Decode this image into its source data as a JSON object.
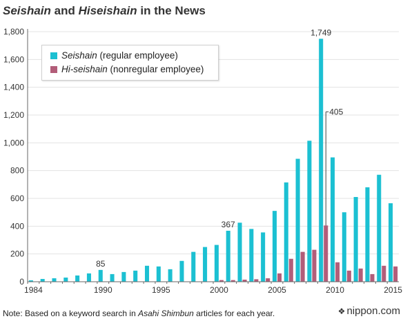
{
  "title": {
    "part1": "Seishain",
    "part2": " and ",
    "part3": "Hiseishain",
    "part4": " in the News"
  },
  "legend": {
    "s1_name_italic": "Seishain",
    "s1_name_rest": " (regular employee)",
    "s2_name_italic": "Hi-seishain",
    "s2_name_rest": " (nonregular employee)"
  },
  "note": {
    "prefix": "Note: Based on a keyword search in ",
    "italic": "Asahi Shimbun",
    "suffix": " articles for each year."
  },
  "brand": {
    "symbol": "❖",
    "text": "nippon.com"
  },
  "colors": {
    "seishain": "#1cc0d2",
    "hiseishain": "#b25d79",
    "gridline": "#e3e3e3",
    "axis": "#666666"
  },
  "chart_data": {
    "type": "bar",
    "categories": [
      1984,
      1985,
      1986,
      1987,
      1988,
      1989,
      1990,
      1991,
      1992,
      1993,
      1994,
      1995,
      1996,
      1997,
      1998,
      1999,
      2000,
      2001,
      2002,
      2003,
      2004,
      2005,
      2006,
      2007,
      2008,
      2009,
      2010,
      2011,
      2012,
      2013,
      2014,
      2015
    ],
    "x_tick_labels": [
      "1984",
      "1990",
      "1995",
      "2000",
      "2005",
      "2010",
      "2015"
    ],
    "y_tick_labels": [
      "0",
      "200",
      "400",
      "600",
      "800",
      "1,000",
      "1,200",
      "1,400",
      "1,600",
      "1,800"
    ],
    "ylim": [
      0,
      1800
    ],
    "grid": true,
    "legend_position": "top-left",
    "series": [
      {
        "name": "Seishain (regular employee)",
        "values": [
          10,
          20,
          25,
          30,
          45,
          60,
          85,
          55,
          70,
          80,
          115,
          110,
          90,
          150,
          215,
          250,
          265,
          367,
          425,
          380,
          355,
          510,
          715,
          885,
          1015,
          1749,
          895,
          500,
          610,
          680,
          770,
          565
        ]
      },
      {
        "name": "Hi-seishain (nonregular employee)",
        "values": [
          0,
          0,
          0,
          0,
          0,
          0,
          0,
          0,
          0,
          0,
          0,
          0,
          0,
          0,
          0,
          0,
          12,
          12,
          15,
          18,
          25,
          60,
          165,
          215,
          230,
          405,
          140,
          80,
          95,
          55,
          115,
          110
        ]
      }
    ],
    "annotations": [
      {
        "text": "85",
        "year": 1990,
        "series": 0
      },
      {
        "text": "367",
        "year": 2001,
        "series": 0
      },
      {
        "text": "1,749",
        "year": 2009,
        "series": 0
      },
      {
        "text": "405",
        "year": 2009,
        "series": 1
      }
    ]
  }
}
